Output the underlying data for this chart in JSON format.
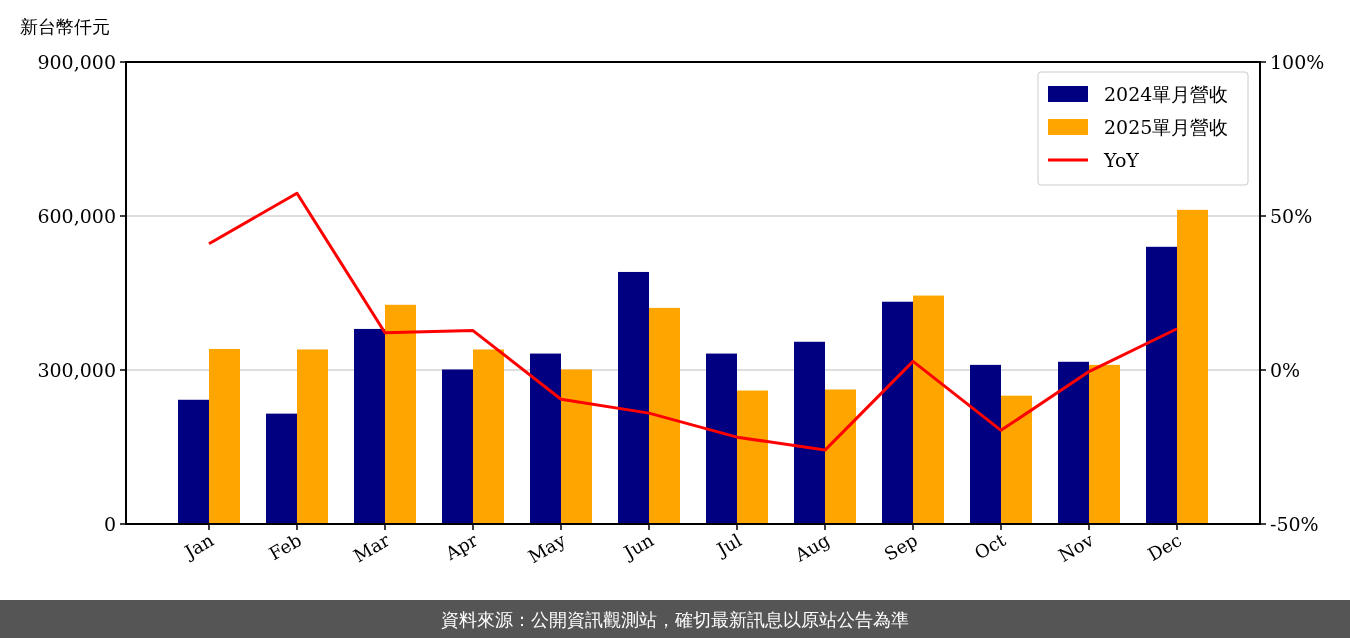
{
  "chart_data": {
    "type": "bar",
    "ylabel": "新台幣仟元",
    "categories": [
      "Jan",
      "Feb",
      "Mar",
      "Apr",
      "May",
      "Jun",
      "Jul",
      "Aug",
      "Sep",
      "Oct",
      "Nov",
      "Dec"
    ],
    "series": [
      {
        "name": "2024單月營收",
        "color": "#000080",
        "values": [
          242000,
          215000,
          380000,
          301000,
          332000,
          491000,
          332000,
          355000,
          433000,
          310000,
          316000,
          540000
        ]
      },
      {
        "name": "2025單月營收",
        "color": "#ffa500",
        "values": [
          341000,
          340000,
          427000,
          340000,
          301000,
          421000,
          260000,
          262000,
          445000,
          250000,
          310000,
          612000
        ]
      },
      {
        "name": "YoY",
        "type": "line",
        "axis": "y2",
        "color": "#ff0000",
        "values": [
          41,
          57.4,
          12.1,
          12.8,
          -9.5,
          -14,
          -21.8,
          -26,
          2.8,
          -19.6,
          -0.5,
          13.4
        ]
      }
    ],
    "ylim": [
      0,
      900000
    ],
    "yticks": [
      {
        "value": 0,
        "label": "0"
      },
      {
        "value": 300000,
        "label": "300,000"
      },
      {
        "value": 600000,
        "label": "600,000"
      },
      {
        "value": 900000,
        "label": "900,000"
      }
    ],
    "y2lim": [
      -50,
      100
    ],
    "y2ticks": [
      {
        "value": -50,
        "label": "-50%"
      },
      {
        "value": 0,
        "label": "0%"
      },
      {
        "value": 50,
        "label": "50%"
      },
      {
        "value": 100,
        "label": "100%"
      }
    ],
    "grid": "y",
    "legend": "top right",
    "marker": "none",
    "line_style": "solid",
    "annotations": [
      "資料來源：公開資訊觀測站，確切最新訊息以原站公告為準"
    ]
  }
}
